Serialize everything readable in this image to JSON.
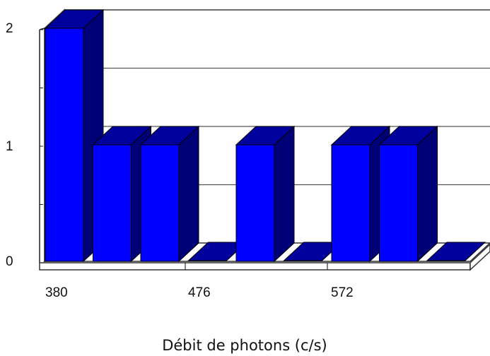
{
  "chart_data": {
    "type": "bar",
    "categories": [
      "380",
      "",
      "",
      "476",
      "",
      "",
      "572",
      "",
      ""
    ],
    "values": [
      2,
      1,
      1,
      0,
      1,
      0,
      1,
      1,
      0
    ],
    "xlabel": "Débit de photons (c/s)",
    "ylabel": "",
    "ylim": [
      0,
      2
    ],
    "y_ticks": [
      "0",
      "1",
      "2"
    ],
    "x_tick_labels": [
      "380",
      "476",
      "572"
    ],
    "grid": true,
    "style": "3d",
    "colors": {
      "bar_front": "#0000ff",
      "bar_side": "#000077",
      "bar_top": "#00009c",
      "grid": "#555555",
      "floor": "#ffffff"
    }
  }
}
